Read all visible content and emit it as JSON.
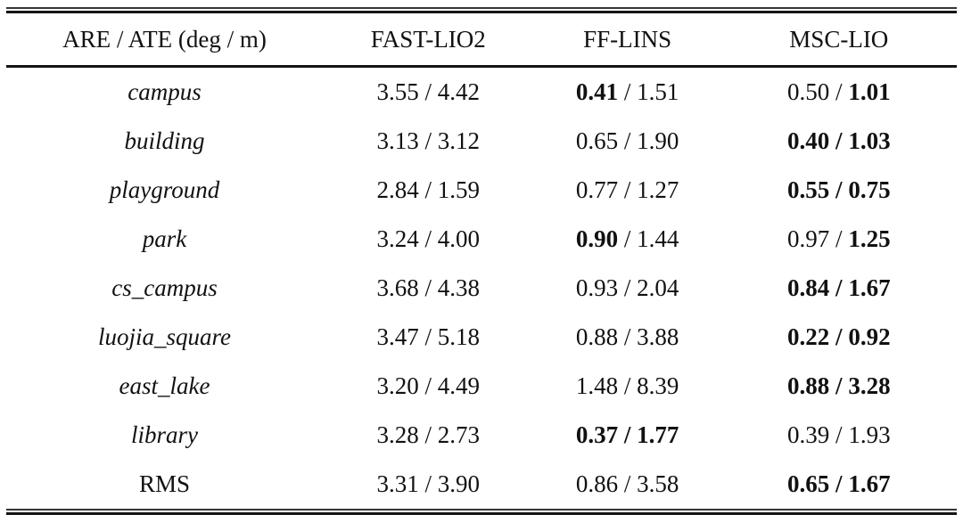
{
  "table": {
    "header": {
      "metric_label": "ARE / ATE (deg / m)",
      "columns": [
        "FAST-LIO2",
        "FF-LINS",
        "MSC-LIO"
      ]
    },
    "separator": "/",
    "rows": [
      {
        "name": "campus",
        "italic": true,
        "fast_lio2": {
          "are": "3.55",
          "ate": "4.42",
          "are_bold": false,
          "ate_bold": false
        },
        "ff_lins": {
          "are": "0.41",
          "ate": "1.51",
          "are_bold": true,
          "ate_bold": false
        },
        "msc_lio": {
          "are": "0.50",
          "ate": "1.01",
          "are_bold": false,
          "ate_bold": true
        }
      },
      {
        "name": "building",
        "italic": true,
        "fast_lio2": {
          "are": "3.13",
          "ate": "3.12",
          "are_bold": false,
          "ate_bold": false
        },
        "ff_lins": {
          "are": "0.65",
          "ate": "1.90",
          "are_bold": false,
          "ate_bold": false
        },
        "msc_lio": {
          "are": "0.40",
          "ate": "1.03",
          "are_bold": true,
          "ate_bold": true
        }
      },
      {
        "name": "playground",
        "italic": true,
        "fast_lio2": {
          "are": "2.84",
          "ate": "1.59",
          "are_bold": false,
          "ate_bold": false
        },
        "ff_lins": {
          "are": "0.77",
          "ate": "1.27",
          "are_bold": false,
          "ate_bold": false
        },
        "msc_lio": {
          "are": "0.55",
          "ate": "0.75",
          "are_bold": true,
          "ate_bold": true
        }
      },
      {
        "name": "park",
        "italic": true,
        "fast_lio2": {
          "are": "3.24",
          "ate": "4.00",
          "are_bold": false,
          "ate_bold": false
        },
        "ff_lins": {
          "are": "0.90",
          "ate": "1.44",
          "are_bold": true,
          "ate_bold": false
        },
        "msc_lio": {
          "are": "0.97",
          "ate": "1.25",
          "are_bold": false,
          "ate_bold": true
        }
      },
      {
        "name": "cs_campus",
        "italic": true,
        "fast_lio2": {
          "are": "3.68",
          "ate": "4.38",
          "are_bold": false,
          "ate_bold": false
        },
        "ff_lins": {
          "are": "0.93",
          "ate": "2.04",
          "are_bold": false,
          "ate_bold": false
        },
        "msc_lio": {
          "are": "0.84",
          "ate": "1.67",
          "are_bold": true,
          "ate_bold": true
        }
      },
      {
        "name": "luojia_square",
        "italic": true,
        "fast_lio2": {
          "are": "3.47",
          "ate": "5.18",
          "are_bold": false,
          "ate_bold": false
        },
        "ff_lins": {
          "are": "0.88",
          "ate": "3.88",
          "are_bold": false,
          "ate_bold": false
        },
        "msc_lio": {
          "are": "0.22",
          "ate": "0.92",
          "are_bold": true,
          "ate_bold": true
        }
      },
      {
        "name": "east_lake",
        "italic": true,
        "fast_lio2": {
          "are": "3.20",
          "ate": "4.49",
          "are_bold": false,
          "ate_bold": false
        },
        "ff_lins": {
          "are": "1.48",
          "ate": "8.39",
          "are_bold": false,
          "ate_bold": false
        },
        "msc_lio": {
          "are": "0.88",
          "ate": "3.28",
          "are_bold": true,
          "ate_bold": true
        }
      },
      {
        "name": "library",
        "italic": true,
        "fast_lio2": {
          "are": "3.28",
          "ate": "2.73",
          "are_bold": false,
          "ate_bold": false
        },
        "ff_lins": {
          "are": "0.37",
          "ate": "1.77",
          "are_bold": true,
          "ate_bold": true
        },
        "msc_lio": {
          "are": "0.39",
          "ate": "1.93",
          "are_bold": false,
          "ate_bold": false
        }
      },
      {
        "name": "RMS",
        "italic": false,
        "fast_lio2": {
          "are": "3.31",
          "ate": "3.90",
          "are_bold": false,
          "ate_bold": false
        },
        "ff_lins": {
          "are": "0.86",
          "ate": "3.58",
          "are_bold": false,
          "ate_bold": false
        },
        "msc_lio": {
          "are": "0.65",
          "ate": "1.67",
          "are_bold": true,
          "ate_bold": true
        }
      }
    ]
  },
  "colors": {
    "text": "#111111",
    "rule": "#141414",
    "background": "#ffffff"
  }
}
